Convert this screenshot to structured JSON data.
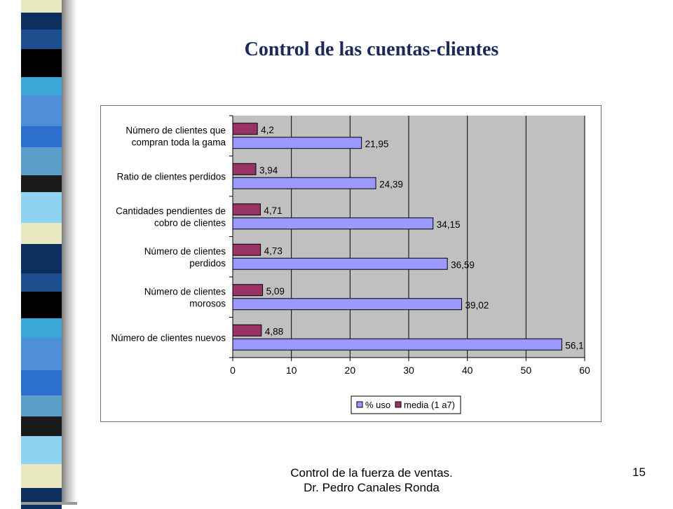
{
  "slide": {
    "title": "Control de las cuentas-clientes",
    "footer_line1": "Control de la fuerza de ventas.",
    "footer_line2": "Dr. Pedro Canales Ronda",
    "page_number": "15"
  },
  "colors": {
    "uso": "#9999ff",
    "media": "#993366",
    "plot_bg": "#c0c0c0",
    "title": "#1b2a5a"
  },
  "chart_data": {
    "type": "bar",
    "orientation": "horizontal",
    "categories": [
      [
        "Número de clientes que",
        "compran toda la gama"
      ],
      [
        "Ratio de clientes perdidos"
      ],
      [
        "Cantidades pendientes de",
        "cobro de clientes"
      ],
      [
        "Número de clientes",
        "perdidos"
      ],
      [
        "Número de clientes",
        "morosos"
      ],
      [
        "Número de clientes nuevos"
      ]
    ],
    "series": [
      {
        "name": "media (1 a7)",
        "values": [
          4.2,
          3.94,
          4.71,
          4.73,
          5.09,
          4.88
        ],
        "labels": [
          "4,2",
          "3,94",
          "4,71",
          "4,73",
          "5,09",
          "4,88"
        ]
      },
      {
        "name": "% uso",
        "values": [
          21.95,
          24.39,
          34.15,
          36.59,
          39.02,
          56.1
        ],
        "labels": [
          "21,95",
          "24,39",
          "34,15",
          "36,59",
          "39,02",
          "56,1"
        ]
      }
    ],
    "legend_order": [
      "% uso",
      "media (1 a7)"
    ],
    "xlim": [
      0,
      60
    ],
    "ticks": [
      0,
      10,
      20,
      30,
      40,
      50,
      60
    ],
    "grid": true,
    "legend": "bottom"
  }
}
